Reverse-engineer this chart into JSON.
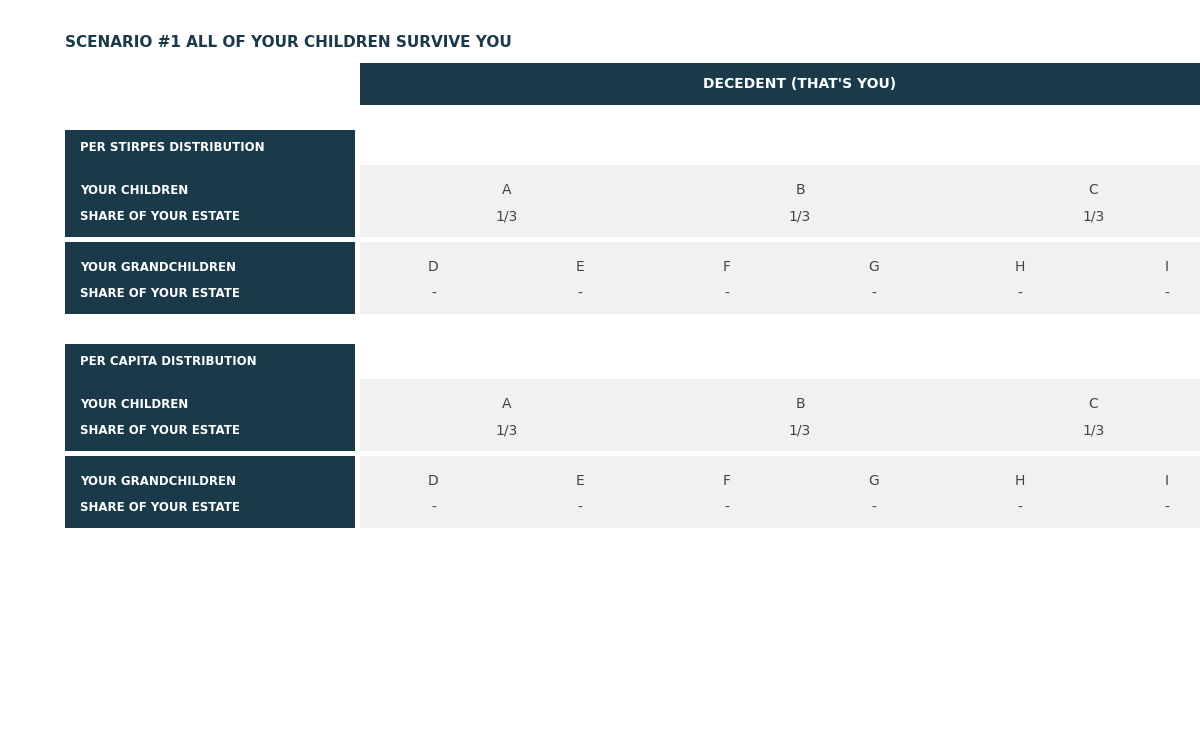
{
  "title": "SCENARIO #1 ALL OF YOUR CHILDREN SURVIVE YOU",
  "title_color": "#1a3a4a",
  "title_fontsize": 11,
  "dark_bg_color": "#1a3a4a",
  "light_bg_color": "#f0f1f2",
  "white_color": "#ffffff",
  "dark_text_color": "#ffffff",
  "light_text_color": "#333333",
  "header_label": "DECEDENT (THAT'S YOU)",
  "sections": [
    {
      "section_header": "PER STIRPES DISTRIBUTION",
      "rows": [
        {
          "label_line1": "YOUR CHILDREN",
          "label_line2": "SHARE OF YOUR ESTATE",
          "col_type": "children",
          "letters": [
            "A",
            "B",
            "C"
          ],
          "values": [
            "1/3",
            "1/3",
            "1/3"
          ]
        },
        {
          "label_line1": "YOUR GRANDCHILDREN",
          "label_line2": "SHARE OF YOUR ESTATE",
          "col_type": "grandchildren",
          "letters": [
            "D",
            "E",
            "F",
            "G",
            "H",
            "I"
          ],
          "values": [
            "-",
            "-",
            "-",
            "-",
            "-",
            "-"
          ]
        }
      ]
    },
    {
      "section_header": "PER CAPITA DISTRIBUTION",
      "rows": [
        {
          "label_line1": "YOUR CHILDREN",
          "label_line2": "SHARE OF YOUR ESTATE",
          "col_type": "children",
          "letters": [
            "A",
            "B",
            "C"
          ],
          "values": [
            "1/3",
            "1/3",
            "1/3"
          ]
        },
        {
          "label_line1": "YOUR GRANDCHILDREN",
          "label_line2": "SHARE OF YOUR ESTATE",
          "col_type": "grandchildren",
          "letters": [
            "D",
            "E",
            "F",
            "G",
            "H",
            "I"
          ],
          "values": [
            "-",
            "-",
            "-",
            "-",
            "-",
            "-"
          ]
        }
      ]
    }
  ]
}
